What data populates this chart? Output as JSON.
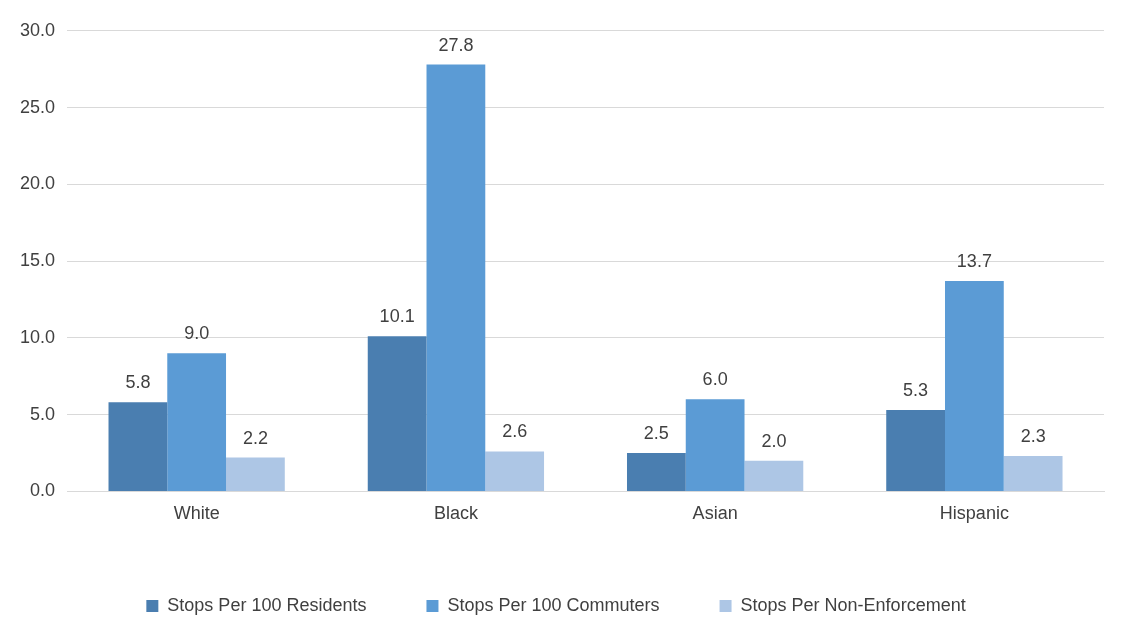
{
  "chart_data": {
    "type": "bar",
    "categories": [
      "White",
      "Black",
      "Asian",
      "Hispanic"
    ],
    "series": [
      {
        "name": "Stops Per 100 Residents",
        "color": "#4a7eb0",
        "values": [
          5.8,
          10.1,
          2.5,
          5.3
        ],
        "value_labels": [
          "5.8",
          "10.1",
          "2.5",
          "5.3"
        ]
      },
      {
        "name": "Stops Per 100 Commuters",
        "color": "#5b9bd5",
        "values": [
          9.0,
          27.8,
          6.0,
          13.7
        ],
        "value_labels": [
          "9.0",
          "27.8",
          "6.0",
          "13.7"
        ]
      },
      {
        "name": "Stops Per Non-Enforcement",
        "color": "#adc6e5",
        "values": [
          2.2,
          2.6,
          2.0,
          2.3
        ],
        "value_labels": [
          "2.2",
          "2.6",
          "2.0",
          "2.3"
        ]
      }
    ],
    "ylim": [
      0,
      30
    ],
    "yticks": [
      {
        "value": 0,
        "label": "0.0"
      },
      {
        "value": 5,
        "label": "5.0"
      },
      {
        "value": 10,
        "label": "10.0"
      },
      {
        "value": 15,
        "label": "15.0"
      },
      {
        "value": 20,
        "label": "20.0"
      },
      {
        "value": 25,
        "label": "25.0"
      },
      {
        "value": 30,
        "label": "30.0"
      }
    ],
    "grid": "y",
    "legend": "bottom"
  }
}
